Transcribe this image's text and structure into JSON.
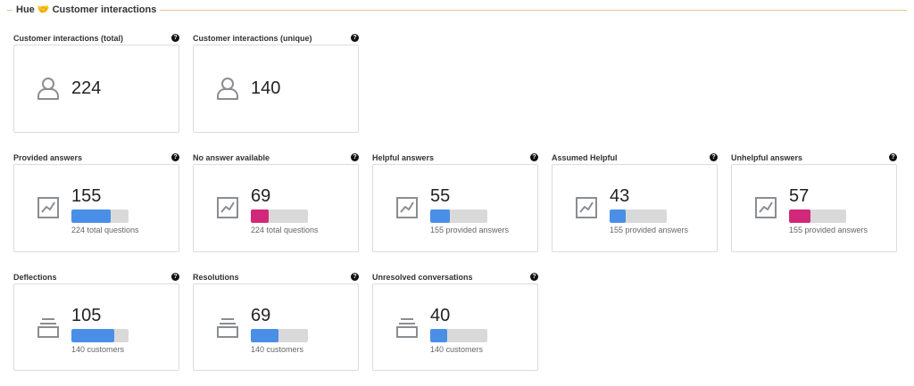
{
  "section": {
    "title": "Hue 🤝 Customer interactions"
  },
  "colors": {
    "blue": "#4a8fe7",
    "magenta": "#d2287a",
    "track": "#d9d9d9",
    "icon": "#8a8d93"
  },
  "row1": [
    {
      "label": "Customer interactions (total)",
      "value": "224",
      "icon": "person-icon"
    },
    {
      "label": "Customer interactions (unique)",
      "value": "140",
      "icon": "person-icon"
    }
  ],
  "row2": [
    {
      "label": "Provided answers",
      "value": "155",
      "sub": "224 total questions",
      "fill": 0.69,
      "color": "#4a8fe7",
      "icon": "trend-chart-icon"
    },
    {
      "label": "No answer available",
      "value": "69",
      "sub": "224 total questions",
      "fill": 0.31,
      "color": "#d2287a",
      "icon": "trend-chart-icon"
    },
    {
      "label": "Helpful answers",
      "value": "55",
      "sub": "155 provided answers",
      "fill": 0.35,
      "color": "#4a8fe7",
      "icon": "trend-chart-icon"
    },
    {
      "label": "Assumed Helpful",
      "value": "43",
      "sub": "155 provided answers",
      "fill": 0.28,
      "color": "#4a8fe7",
      "icon": "trend-chart-icon"
    },
    {
      "label": "Unhelpful answers",
      "value": "57",
      "sub": "155 provided answers",
      "fill": 0.37,
      "color": "#d2287a",
      "icon": "trend-chart-icon"
    }
  ],
  "row3": [
    {
      "label": "Deflections",
      "value": "105",
      "sub": "140 customers",
      "fill": 0.75,
      "color": "#4a8fe7",
      "icon": "stack-icon"
    },
    {
      "label": "Resolutions",
      "value": "69",
      "sub": "140 customers",
      "fill": 0.49,
      "color": "#4a8fe7",
      "icon": "stack-icon"
    },
    {
      "label": "Unresolved conversations",
      "value": "40",
      "sub": "140 customers",
      "fill": 0.29,
      "color": "#4a8fe7",
      "icon": "stack-icon"
    }
  ]
}
